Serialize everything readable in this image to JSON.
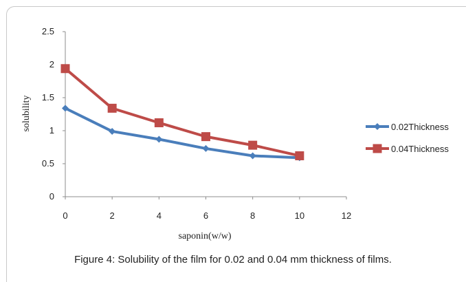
{
  "chart_data": {
    "type": "line",
    "x": [
      0,
      2,
      4,
      6,
      8,
      10
    ],
    "xlim": [
      0,
      12
    ],
    "xticks": [
      0,
      2,
      4,
      6,
      8,
      10,
      12
    ],
    "ylim": [
      0,
      2.5
    ],
    "yticks": [
      0,
      0.5,
      1,
      1.5,
      2,
      2.5
    ],
    "xlabel": "saponin(w/w)",
    "ylabel": "solubility",
    "legend_position": "right",
    "grid": false,
    "series": [
      {
        "name": "0.02Thickness",
        "color": "#4a7ebb",
        "marker": "diamond",
        "values": [
          1.34,
          0.99,
          0.87,
          0.73,
          0.62,
          0.59
        ]
      },
      {
        "name": "0.04Thickness",
        "color": "#be4b48",
        "marker": "square",
        "values": [
          1.94,
          1.34,
          1.12,
          0.91,
          0.78,
          0.62
        ]
      }
    ]
  },
  "caption": "Figure 4: Solubility of the film for 0.02 and 0.04 mm thickness of films."
}
